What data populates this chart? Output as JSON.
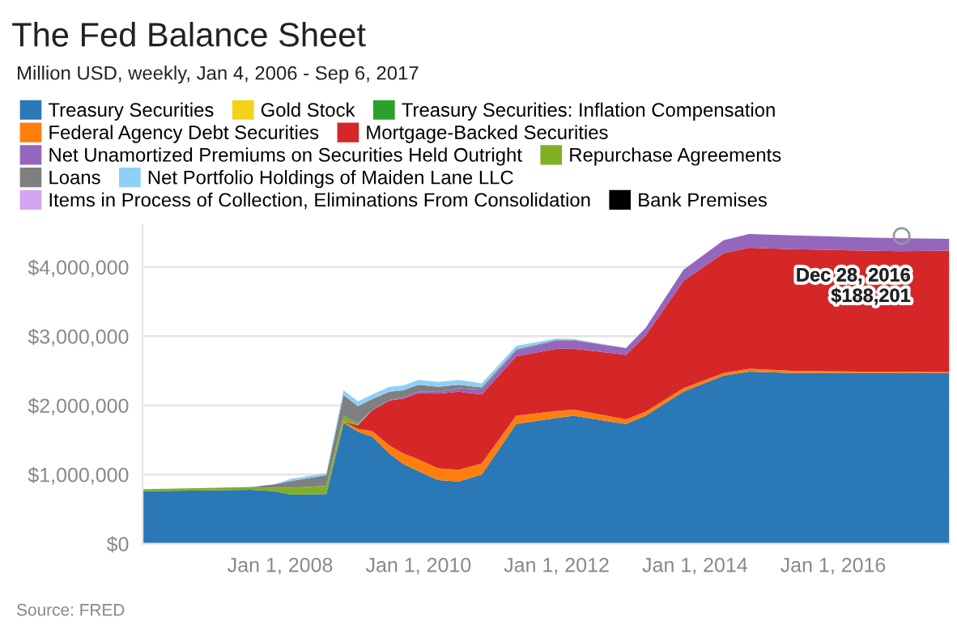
{
  "chart_data": {
    "type": "area",
    "stacked": true,
    "title": "The Fed Balance Sheet",
    "subtitle": "Million USD, weekly, Jan 4, 2006 - Sep 6, 2017",
    "x": [
      "2006-01-04",
      "2007-08-01",
      "2007-12-01",
      "2008-03-01",
      "2008-09-01",
      "2008-12-01",
      "2009-02-15",
      "2009-05-01",
      "2009-08-01",
      "2009-10-15",
      "2010-01-01",
      "2010-04-15",
      "2010-08-01",
      "2010-12-01",
      "2011-06-01",
      "2012-01-01",
      "2012-04-01",
      "2013-01-01",
      "2013-04-15",
      "2013-11-01",
      "2014-06-01",
      "2014-10-15",
      "2015-06-01",
      "2016-06-01",
      "2016-12-28",
      "2017-09-06"
    ],
    "series": [
      {
        "name": "Treasury Securities",
        "color": "#2a78b5",
        "values": [
          760000,
          780000,
          760000,
          710000,
          720000,
          1750000,
          1620000,
          1550000,
          1300000,
          1150000,
          1050000,
          920000,
          900000,
          1000000,
          1730000,
          1820000,
          1850000,
          1730000,
          1850000,
          2200000,
          2430000,
          2490000,
          2470000,
          2470000,
          2470000,
          2470000
        ]
      },
      {
        "name": "Gold Stock",
        "color": "#f2d21b",
        "values": [
          null,
          null,
          null,
          null,
          null,
          null,
          null,
          null,
          null,
          null,
          null,
          null,
          null,
          null,
          null,
          null,
          null,
          null,
          null,
          null,
          null,
          null,
          null,
          null,
          null,
          null
        ]
      },
      {
        "name": "Treasury Securities: Inflation Compensation",
        "color": "#2ca02c",
        "values": [
          null,
          null,
          null,
          null,
          null,
          null,
          null,
          null,
          null,
          null,
          null,
          null,
          null,
          null,
          null,
          null,
          null,
          null,
          null,
          null,
          null,
          null,
          null,
          null,
          null,
          null
        ]
      },
      {
        "name": "Federal Agency Debt Securities",
        "color": "#ff7f0e",
        "values": [
          null,
          null,
          null,
          null,
          0,
          20000,
          40000,
          80000,
          120000,
          150000,
          170000,
          170000,
          170000,
          160000,
          120000,
          100000,
          90000,
          70000,
          60000,
          50000,
          40000,
          40000,
          30000,
          20000,
          20000,
          10000
        ]
      },
      {
        "name": "Mortgage-Backed Securities",
        "color": "#d62728",
        "values": [
          null,
          null,
          null,
          null,
          null,
          0,
          50000,
          300000,
          650000,
          800000,
          960000,
          1080000,
          1130000,
          1000000,
          860000,
          900000,
          880000,
          930000,
          1100000,
          1550000,
          1730000,
          1750000,
          1760000,
          1750000,
          1740000,
          1760000
        ]
      },
      {
        "name": "Net Unamortized Premiums on Securities Held Outright",
        "color": "#9467bd",
        "values": [
          null,
          null,
          null,
          null,
          null,
          0,
          10000,
          10000,
          10000,
          20000,
          20000,
          30000,
          50000,
          70000,
          80000,
          120000,
          120000,
          100000,
          110000,
          160000,
          190000,
          200000,
          200000,
          190000,
          188201,
          170000
        ]
      },
      {
        "name": "Repurchase Agreements",
        "color": "#7fb024",
        "values": [
          30000,
          40000,
          50000,
          100000,
          120000,
          80000,
          20000,
          0,
          null,
          null,
          null,
          null,
          null,
          null,
          null,
          null,
          null,
          null,
          null,
          null,
          null,
          null,
          null,
          null,
          null,
          null
        ]
      },
      {
        "name": "Loans",
        "color": "#7f7f7f",
        "values": [
          0,
          0,
          50000,
          100000,
          150000,
          300000,
          250000,
          150000,
          120000,
          100000,
          100000,
          70000,
          50000,
          30000,
          20000,
          10000,
          10000,
          0,
          null,
          null,
          null,
          null,
          null,
          null,
          null,
          null
        ]
      },
      {
        "name": "Net Portfolio Holdings of Maiden Lane LLC",
        "color": "#8fd0f5",
        "values": [
          null,
          null,
          0,
          30000,
          30000,
          70000,
          70000,
          70000,
          70000,
          70000,
          70000,
          70000,
          70000,
          60000,
          50000,
          20000,
          10000,
          0,
          null,
          null,
          null,
          null,
          null,
          null,
          null,
          null
        ]
      },
      {
        "name": "Items in Process of Collection, Eliminations From Consolidation",
        "color": "#d4a6f0",
        "values": [
          null,
          null,
          null,
          null,
          null,
          null,
          null,
          null,
          null,
          null,
          null,
          null,
          null,
          null,
          null,
          null,
          null,
          null,
          null,
          null,
          null,
          null,
          null,
          null,
          null,
          null
        ]
      },
      {
        "name": "Bank Premises",
        "color": "#000000",
        "values": [
          null,
          null,
          null,
          null,
          null,
          null,
          null,
          null,
          null,
          null,
          null,
          null,
          null,
          null,
          null,
          null,
          null,
          null,
          null,
          null,
          null,
          null,
          null,
          null,
          null,
          null
        ]
      }
    ],
    "xlim": [
      "2006-01-04",
      "2017-09-06"
    ],
    "xticks": [
      {
        "value": "2008-01-01",
        "label": "Jan 1, 2008"
      },
      {
        "value": "2010-01-01",
        "label": "Jan 1, 2010"
      },
      {
        "value": "2012-01-01",
        "label": "Jan 1, 2012"
      },
      {
        "value": "2014-01-01",
        "label": "Jan 1, 2014"
      },
      {
        "value": "2016-01-01",
        "label": "Jan 1, 2016"
      }
    ],
    "ylim": [
      0,
      4600000
    ],
    "yticks": [
      {
        "value": 0,
        "label": "$0"
      },
      {
        "value": 1000000,
        "label": "$1,000,000"
      },
      {
        "value": 2000000,
        "label": "$2,000,000"
      },
      {
        "value": 3000000,
        "label": "$3,000,000"
      },
      {
        "value": 4000000,
        "label": "$4,000,000"
      }
    ],
    "grid": "y",
    "legend": "top",
    "annotations": [
      {
        "text": "Dec 28, 2016\n$188,201",
        "x": "2016-12-28",
        "y": 4450000
      },
      "Source: FRED"
    ]
  }
}
